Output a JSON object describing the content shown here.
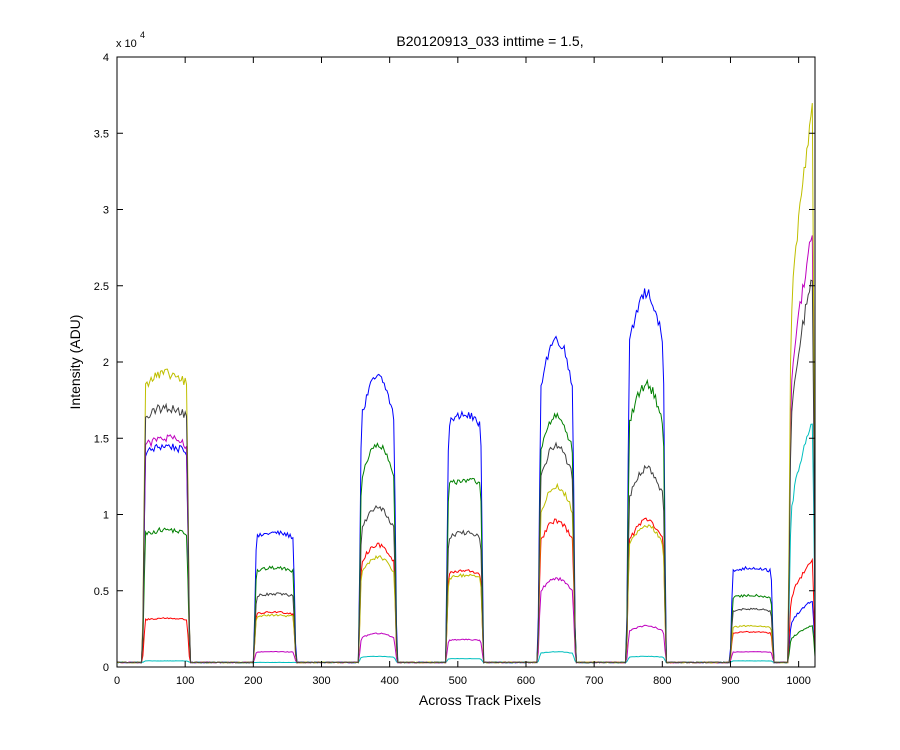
{
  "chart_data": {
    "type": "line",
    "title": "B20120913_033 inttime = 1.5,",
    "xlabel": "Across Track Pixels",
    "ylabel": "Intensity (ADU)",
    "y_exponent_label": "x 10",
    "y_exponent_power": "4",
    "xlim": [
      0,
      1024
    ],
    "ylim": [
      0,
      40000
    ],
    "xticks": [
      0,
      100,
      200,
      300,
      400,
      500,
      600,
      700,
      800,
      900,
      1000
    ],
    "yticks": [
      0,
      5000,
      10000,
      15000,
      20000,
      25000,
      30000,
      35000,
      40000
    ],
    "ytick_labels": [
      "0",
      "0.5",
      "1",
      "1.5",
      "2",
      "2.5",
      "3",
      "3.5",
      "4"
    ],
    "grid": false,
    "legend": "none",
    "bands": [
      {
        "x0": 38,
        "x1": 106,
        "shape": "flat"
      },
      {
        "x0": 201,
        "x1": 262,
        "shape": "flat"
      },
      {
        "x0": 355,
        "x1": 410,
        "shape": "hump"
      },
      {
        "x0": 483,
        "x1": 537,
        "shape": "flat"
      },
      {
        "x0": 618,
        "x1": 672,
        "shape": "hump"
      },
      {
        "x0": 748,
        "x1": 805,
        "shape": "hump"
      },
      {
        "x0": 900,
        "x1": 963,
        "shape": "flat"
      },
      {
        "x0": 985,
        "x1": 1024,
        "shape": "rise"
      }
    ],
    "series": [
      {
        "color": "#0000ff",
        "baseline": 300,
        "levels": [
          14500,
          8800,
          19000,
          16500,
          21500,
          24500,
          6500,
          4500
        ]
      },
      {
        "color": "#008000",
        "baseline": 300,
        "levels": [
          9000,
          6500,
          14500,
          12300,
          16500,
          18500,
          4700,
          2800
        ]
      },
      {
        "color": "#ff0000",
        "baseline": 300,
        "levels": [
          3200,
          3600,
          8000,
          6300,
          9600,
          9600,
          2300,
          7200
        ]
      },
      {
        "color": "#00bfbf",
        "baseline": 300,
        "levels": [
          400,
          300,
          700,
          550,
          1000,
          700,
          400,
          16700
        ]
      },
      {
        "color": "#bf00bf",
        "baseline": 300,
        "levels": [
          15000,
          1000,
          2200,
          1800,
          5800,
          2700,
          1000,
          29300
        ]
      },
      {
        "color": "#bfbf00",
        "baseline": 300,
        "levels": [
          19200,
          3400,
          7200,
          6000,
          11800,
          9300,
          2700,
          37800
        ]
      },
      {
        "color": "#404040",
        "baseline": 300,
        "levels": [
          17000,
          4800,
          10500,
          8800,
          14500,
          13000,
          3800,
          26500
        ]
      }
    ]
  }
}
